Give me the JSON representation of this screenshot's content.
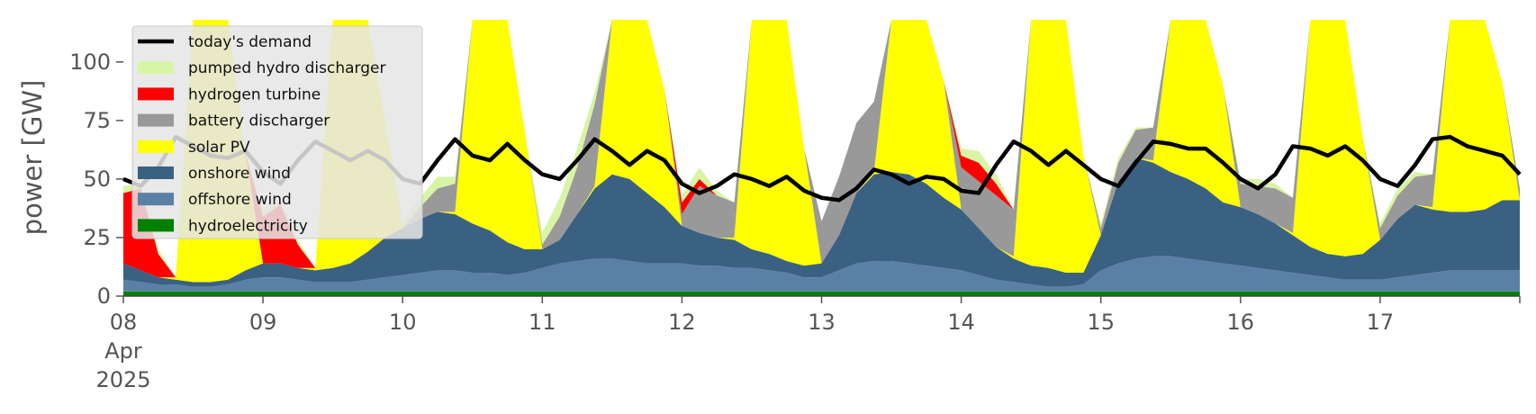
{
  "chart_data": {
    "type": "area",
    "title": "",
    "xlabel": "",
    "ylabel": "power [GW]",
    "ylim": [
      0,
      118
    ],
    "yticks": [
      0,
      25,
      50,
      75,
      100
    ],
    "ytick_labels": [
      "0",
      "25",
      "50",
      "75",
      "100"
    ],
    "xlim": [
      0,
      240
    ],
    "x_unit": "hours since 08 Apr 2025 00:00",
    "x_step_hours": 3,
    "xtick_labels": [
      {
        "day": "08",
        "month": "Apr",
        "year": "2025"
      },
      {
        "day": "09"
      },
      {
        "day": "10"
      },
      {
        "day": "11"
      },
      {
        "day": "12"
      },
      {
        "day": "13"
      },
      {
        "day": "14"
      },
      {
        "day": "15"
      },
      {
        "day": "16"
      },
      {
        "day": "17"
      }
    ],
    "legend_position": "upper-left",
    "series": [
      {
        "name": "hydroelectricity",
        "color": "#008000",
        "values": [
          2,
          2,
          2,
          2,
          2,
          2,
          2,
          2,
          2,
          2,
          2,
          2,
          2,
          2,
          2,
          2,
          2,
          2,
          2,
          2,
          2,
          2,
          2,
          2,
          2,
          2,
          2,
          2,
          2,
          2,
          2,
          2,
          2,
          2,
          2,
          2,
          2,
          2,
          2,
          2,
          2,
          2,
          2,
          2,
          2,
          2,
          2,
          2,
          2,
          2,
          2,
          2,
          2,
          2,
          2,
          2,
          2,
          2,
          2,
          2,
          2,
          2,
          2,
          2,
          2,
          2,
          2,
          2,
          2,
          2,
          2,
          2,
          2,
          2,
          2,
          2,
          2,
          2,
          2,
          2,
          2
        ]
      },
      {
        "name": "offshore wind",
        "color": "#5b80a6",
        "values": [
          5,
          4,
          3,
          3,
          2,
          2,
          3,
          5,
          6,
          6,
          5,
          4,
          4,
          4,
          5,
          6,
          7,
          8,
          9,
          9,
          8,
          8,
          7,
          8,
          10,
          12,
          13,
          14,
          14,
          13,
          12,
          12,
          12,
          11,
          11,
          10,
          10,
          9,
          8,
          6,
          6,
          9,
          12,
          13,
          13,
          12,
          11,
          10,
          9,
          7,
          5,
          4,
          3,
          2,
          2,
          3,
          9,
          12,
          14,
          15,
          15,
          14,
          13,
          12,
          11,
          10,
          9,
          8,
          7,
          6,
          5,
          5,
          5,
          6,
          7,
          8,
          9,
          9,
          9,
          9,
          9
        ]
      },
      {
        "name": "onshore wind",
        "color": "#3b6182",
        "values": [
          7,
          5,
          3,
          2,
          2,
          2,
          2,
          4,
          6,
          6,
          5,
          5,
          6,
          8,
          12,
          17,
          20,
          23,
          25,
          24,
          21,
          18,
          14,
          10,
          8,
          10,
          20,
          30,
          36,
          35,
          30,
          24,
          16,
          14,
          12,
          12,
          8,
          7,
          5,
          5,
          6,
          15,
          30,
          37,
          38,
          38,
          35,
          30,
          26,
          20,
          14,
          10,
          8,
          8,
          6,
          5,
          15,
          35,
          43,
          40,
          36,
          34,
          31,
          26,
          25,
          23,
          20,
          16,
          12,
          10,
          10,
          11,
          17,
          25,
          30,
          27,
          25,
          25,
          26,
          30,
          30
        ]
      },
      {
        "name": "solar PV",
        "color": "#ffff00",
        "values": [
          0,
          0,
          0,
          1,
          112,
          118,
          118,
          50,
          0,
          0,
          0,
          1,
          112,
          118,
          118,
          50,
          0,
          0,
          0,
          1,
          112,
          118,
          118,
          50,
          0,
          0,
          0,
          1,
          112,
          118,
          118,
          50,
          0,
          0,
          0,
          1,
          112,
          118,
          118,
          50,
          0,
          0,
          0,
          1,
          112,
          118,
          118,
          50,
          0,
          0,
          0,
          1,
          112,
          118,
          118,
          50,
          0,
          0,
          0,
          1,
          112,
          118,
          118,
          50,
          0,
          0,
          0,
          1,
          112,
          118,
          118,
          50,
          0,
          0,
          0,
          1,
          112,
          118,
          118,
          50,
          0
        ]
      },
      {
        "name": "battery discharger",
        "color": "#999999",
        "values": [
          0,
          0,
          0,
          0,
          0,
          0,
          0,
          0,
          0,
          0,
          0,
          0,
          0,
          0,
          0,
          0,
          0,
          5,
          10,
          12,
          14,
          12,
          5,
          0,
          2,
          10,
          20,
          35,
          45,
          50,
          35,
          0,
          5,
          20,
          18,
          15,
          10,
          8,
          5,
          0,
          18,
          25,
          30,
          30,
          20,
          10,
          0,
          0,
          18,
          20,
          22,
          20,
          10,
          0,
          0,
          0,
          3,
          8,
          12,
          14,
          12,
          10,
          5,
          0,
          10,
          12,
          15,
          15,
          10,
          5,
          0,
          0,
          5,
          10,
          12,
          14,
          12,
          10,
          5,
          0,
          5
        ]
      },
      {
        "name": "hydrogen turbine",
        "color": "#ff0000",
        "values": [
          30,
          35,
          10,
          0,
          0,
          0,
          0,
          0,
          20,
          25,
          10,
          0,
          0,
          0,
          0,
          0,
          0,
          0,
          0,
          0,
          0,
          0,
          0,
          0,
          0,
          0,
          0,
          0,
          0,
          0,
          0,
          0,
          5,
          3,
          0,
          0,
          0,
          0,
          0,
          0,
          0,
          0,
          0,
          0,
          0,
          0,
          0,
          0,
          5,
          8,
          5,
          0,
          0,
          0,
          0,
          0,
          0,
          0,
          0,
          0,
          0,
          0,
          0,
          0,
          0,
          0,
          0,
          0,
          0,
          0,
          0,
          0,
          0,
          0,
          0,
          0,
          0,
          0,
          0,
          0,
          0
        ]
      },
      {
        "name": "pumped hydro discharger",
        "color": "#d7f5a4",
        "values": [
          3,
          2,
          2,
          0,
          0,
          0,
          0,
          0,
          3,
          2,
          2,
          0,
          0,
          0,
          0,
          0,
          3,
          4,
          5,
          3,
          0,
          0,
          0,
          0,
          5,
          8,
          8,
          5,
          0,
          0,
          0,
          0,
          3,
          5,
          2,
          0,
          0,
          0,
          0,
          0,
          0,
          0,
          0,
          0,
          0,
          0,
          0,
          0,
          3,
          5,
          4,
          0,
          0,
          0,
          0,
          0,
          2,
          2,
          1,
          0,
          0,
          0,
          0,
          0,
          2,
          3,
          2,
          0,
          0,
          0,
          0,
          0,
          2,
          3,
          2,
          0,
          0,
          0,
          0,
          0,
          0
        ]
      }
    ],
    "demand": {
      "name": "today's demand",
      "color": "#000000",
      "values": [
        50,
        47,
        55,
        68,
        64,
        60,
        59,
        62,
        53,
        48,
        58,
        66,
        62,
        58,
        62,
        58,
        50,
        48,
        58,
        67,
        60,
        58,
        65,
        58,
        52,
        50,
        58,
        67,
        62,
        56,
        62,
        58,
        48,
        44,
        47,
        52,
        50,
        47,
        51,
        45,
        42,
        41,
        46,
        54,
        52,
        48,
        51,
        50,
        45,
        44,
        56,
        66,
        62,
        56,
        62,
        56,
        50,
        47,
        57,
        66,
        65,
        63,
        63,
        57,
        50,
        46,
        52,
        64,
        63,
        60,
        64,
        58,
        50,
        47,
        56,
        67,
        68,
        64,
        62,
        60,
        52
      ]
    }
  },
  "legend_items": [
    {
      "label": "today's demand",
      "kind": "line",
      "color": "#000000"
    },
    {
      "label": "pumped hydro discharger",
      "kind": "patch",
      "color": "#d7f5a4"
    },
    {
      "label": "hydrogen turbine",
      "kind": "patch",
      "color": "#ff0000"
    },
    {
      "label": "battery discharger",
      "kind": "patch",
      "color": "#999999"
    },
    {
      "label": "solar PV",
      "kind": "patch",
      "color": "#ffff00"
    },
    {
      "label": "onshore wind",
      "kind": "patch",
      "color": "#3b6182"
    },
    {
      "label": "offshore wind",
      "kind": "patch",
      "color": "#5b80a6"
    },
    {
      "label": "hydroelectricity",
      "kind": "patch",
      "color": "#008000"
    }
  ]
}
